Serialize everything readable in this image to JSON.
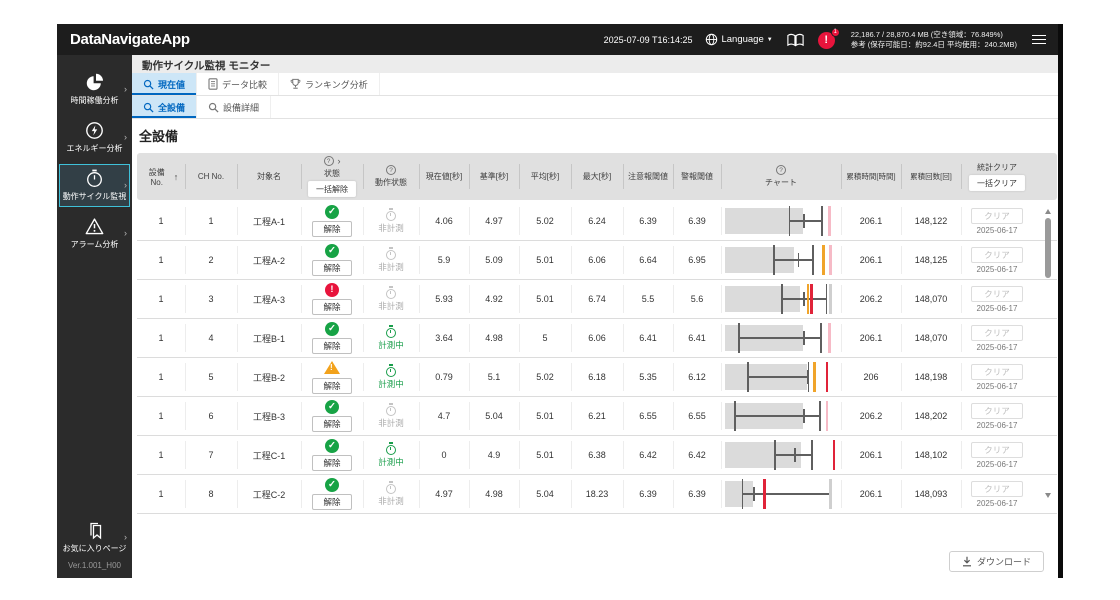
{
  "app": {
    "title": "DataNavigateApp",
    "datetime": "2025-07-09 T16:14:25",
    "language_label": "Language",
    "alert_badge": "1",
    "memory_line1": "22,186.7 / 28,870.4 MB (空き領域：76.849%)",
    "memory_line2": "参考 (保存可能日：約92.4日 平均使用：240.2MB)"
  },
  "sidebar": {
    "items": [
      {
        "label": "時間稼働分析",
        "icon": "pie-chart-icon",
        "selected": false
      },
      {
        "label": "エネルギー分析",
        "icon": "energy-icon",
        "selected": false
      },
      {
        "label": "動作サイクル監視",
        "icon": "stopwatch-icon",
        "selected": true
      },
      {
        "label": "アラーム分析",
        "icon": "alarm-icon",
        "selected": false
      }
    ],
    "favorites_label": "お気に入りページ",
    "version": "Ver.1.001_H00"
  },
  "page": {
    "title": "動作サイクル監視 モニター",
    "heading": "全設備"
  },
  "tabs_primary": [
    {
      "label": "現在値",
      "selected": true
    },
    {
      "label": "データ比較",
      "selected": false
    },
    {
      "label": "ランキング分析",
      "selected": false
    }
  ],
  "tabs_secondary": [
    {
      "label": "全設備",
      "selected": true
    },
    {
      "label": "設備詳細",
      "selected": false
    }
  ],
  "table": {
    "headers": {
      "no": "設備 No.",
      "ch": "CH No.",
      "name": "対象名",
      "status": "状態",
      "motion": "動作状態",
      "current": "現在値[秒]",
      "base": "基準[秒]",
      "avg": "平均[秒]",
      "max": "最大[秒]",
      "caution": "注意報閾値",
      "alarm": "警報閾値",
      "chart": "チャート",
      "hours": "累積時間[時間]",
      "count": "累積回数[回]",
      "clear": "統計クリア"
    },
    "buttons": {
      "bulk_release": "一括解除",
      "bulk_clear": "一括クリア",
      "release": "解除",
      "clear": "クリア"
    },
    "status_labels": {
      "measuring": "計測中",
      "not_measuring": "非計測"
    },
    "rows": [
      {
        "no": "1",
        "ch": "1",
        "name": "工程A-1",
        "status": "ok",
        "motion": "idle",
        "current": "4.06",
        "base": "4.97",
        "avg": "5.02",
        "max": "6.24",
        "caution": "6.39",
        "alarm": "6.39",
        "hours": "206.1",
        "count": "148,122",
        "clear_date": "2025-06-17",
        "chart": {
          "bar": 70,
          "wh": [
            57,
            86
          ],
          "mid": 70,
          "lines": [
            [
              92,
              "pink"
            ]
          ]
        }
      },
      {
        "no": "1",
        "ch": "2",
        "name": "工程A-2",
        "status": "ok",
        "motion": "idle",
        "current": "5.9",
        "base": "5.09",
        "avg": "5.01",
        "max": "6.06",
        "caution": "6.64",
        "alarm": "6.95",
        "hours": "206.1",
        "count": "148,125",
        "clear_date": "2025-06-17",
        "chart": {
          "bar": 62,
          "wh": [
            43,
            78
          ],
          "mid": 65,
          "lines": [
            [
              87,
              "orange"
            ],
            [
              93,
              "pink"
            ]
          ]
        }
      },
      {
        "no": "1",
        "ch": "3",
        "name": "工程A-3",
        "status": "error",
        "motion": "idle",
        "current": "5.93",
        "base": "4.92",
        "avg": "5.01",
        "max": "6.74",
        "caution": "5.5",
        "alarm": "5.6",
        "hours": "206.2",
        "count": "148,070",
        "clear_date": "2025-06-17",
        "chart": {
          "bar": 67,
          "wh": [
            50,
            90
          ],
          "mid": 70,
          "lines": [
            [
              73,
              "orange"
            ],
            [
              76,
              "red"
            ],
            [
              93,
              "grey"
            ]
          ]
        }
      },
      {
        "no": "1",
        "ch": "4",
        "name": "工程B-1",
        "status": "ok",
        "motion": "run",
        "current": "3.64",
        "base": "4.98",
        "avg": "5",
        "max": "6.06",
        "caution": "6.41",
        "alarm": "6.41",
        "hours": "206.1",
        "count": "148,070",
        "clear_date": "2025-06-17",
        "chart": {
          "bar": 70,
          "wh": [
            12,
            85
          ],
          "mid": 70,
          "lines": [
            [
              92,
              "pink"
            ]
          ]
        }
      },
      {
        "no": "1",
        "ch": "5",
        "name": "工程B-2",
        "status": "warn",
        "motion": "run",
        "current": "0.79",
        "base": "5.1",
        "avg": "5.02",
        "max": "6.18",
        "caution": "5.35",
        "alarm": "6.12",
        "hours": "206",
        "count": "148,198",
        "clear_date": "2025-06-17",
        "chart": {
          "bar": 73,
          "wh": [
            20,
            74
          ],
          "mid": 73,
          "lines": [
            [
              79,
              "orange"
            ],
            [
              90,
              "red"
            ]
          ]
        }
      },
      {
        "no": "1",
        "ch": "6",
        "name": "工程B-3",
        "status": "ok",
        "motion": "idle",
        "current": "4.7",
        "base": "5.04",
        "avg": "5.01",
        "max": "6.21",
        "caution": "6.55",
        "alarm": "6.55",
        "hours": "206.2",
        "count": "148,202",
        "clear_date": "2025-06-17",
        "chart": {
          "bar": 70,
          "wh": [
            8,
            84
          ],
          "mid": 70,
          "lines": [
            [
              90,
              "pink"
            ]
          ]
        }
      },
      {
        "no": "1",
        "ch": "7",
        "name": "工程C-1",
        "status": "ok",
        "motion": "run",
        "current": "0",
        "base": "4.9",
        "avg": "5.01",
        "max": "6.38",
        "caution": "6.42",
        "alarm": "6.42",
        "hours": "206.1",
        "count": "148,102",
        "clear_date": "2025-06-17",
        "chart": {
          "bar": 68,
          "wh": [
            44,
            77
          ],
          "mid": 62,
          "lines": [
            [
              96,
              "red"
            ]
          ]
        }
      },
      {
        "no": "1",
        "ch": "8",
        "name": "工程C-2",
        "status": "ok",
        "motion": "idle",
        "current": "4.97",
        "base": "4.98",
        "avg": "5.04",
        "max": "18.23",
        "caution": "6.39",
        "alarm": "6.39",
        "hours": "206.1",
        "count": "148,093",
        "clear_date": "2025-06-17",
        "chart": {
          "bar": 25,
          "wh": [
            15,
            93
          ],
          "mid": 25,
          "lines": [
            [
              34,
              "red"
            ],
            [
              93,
              "grey"
            ]
          ]
        }
      }
    ]
  },
  "footer": {
    "download_label": "ダウンロード"
  },
  "colors": {
    "accent_blue": "#0067c0",
    "tab_selected_bg": "#cde6f7",
    "sidebar_selected_border": "#3fc1d9",
    "status_ok": "#17a345",
    "status_error": "#e8143c",
    "status_warning": "#f2a21c",
    "measuring_green": "#1a9e4b",
    "alert_red": "#e8143c",
    "chart_orange": "#f0a42a",
    "chart_red": "#e02339",
    "chart_pink": "#f6bac6",
    "chart_grey": "#cfcfcf"
  }
}
